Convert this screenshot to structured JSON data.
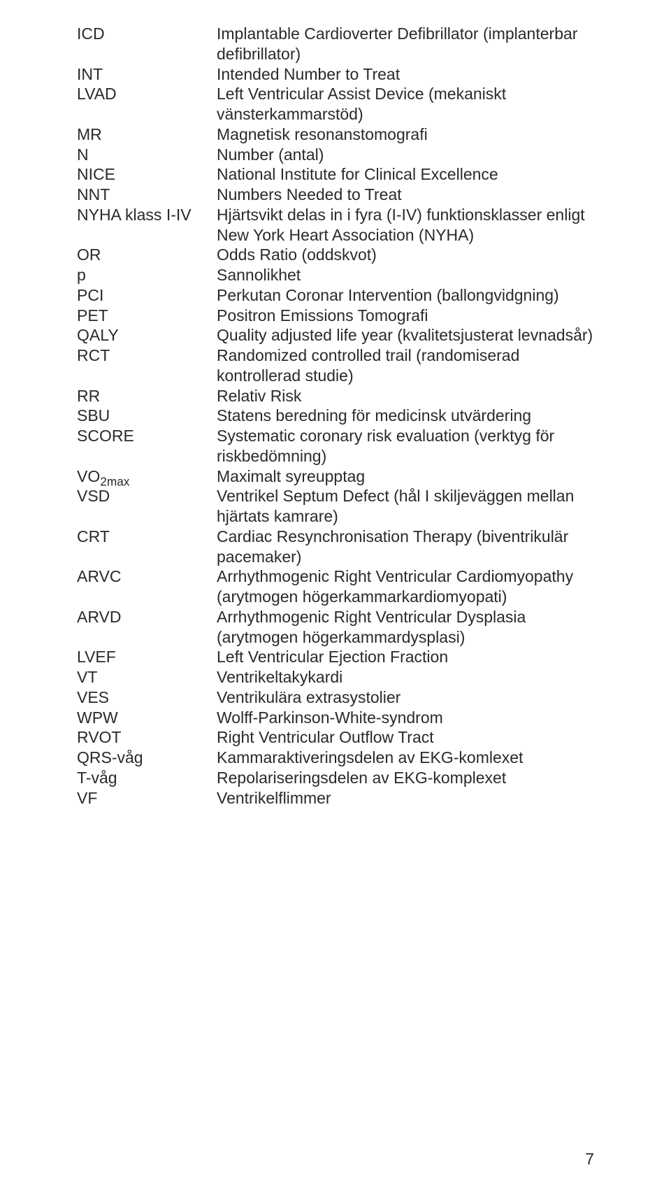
{
  "page_number": "7",
  "entries": [
    {
      "abbr": "ICD",
      "def": "Implantable Cardioverter Defibrillator (implanterbar defibrillator)"
    },
    {
      "abbr": "INT",
      "def": "Intended Number to Treat"
    },
    {
      "abbr": "LVAD",
      "def": "Left Ventricular Assist Device (mekaniskt vänsterkammarstöd)"
    },
    {
      "abbr": "MR",
      "def": "Magnetisk resonanstomografi"
    },
    {
      "abbr": "N",
      "def": "Number (antal)"
    },
    {
      "abbr": "NICE",
      "def": "National Institute for Clinical Excellence"
    },
    {
      "abbr": "NNT",
      "def": "Numbers Needed to Treat"
    },
    {
      "abbr": "NYHA klass I-IV",
      "def": "Hjärtsvikt delas in i fyra (I-IV) funktionsklasser enligt New York Heart Association (NYHA)"
    },
    {
      "abbr": "OR",
      "def": "Odds Ratio (oddskvot)"
    },
    {
      "abbr": "p",
      "def": "Sannolikhet"
    },
    {
      "abbr": "PCI",
      "def": "Perkutan Coronar Intervention (ballongvidgning)"
    },
    {
      "abbr": "PET",
      "def": "Positron Emissions Tomografi"
    },
    {
      "abbr": "QALY",
      "def": "Quality adjusted life year (kvalitetsjusterat levnadsår)"
    },
    {
      "abbr": "RCT",
      "def": "Randomized controlled trail (randomiserad kontrollerad studie)"
    },
    {
      "abbr": "RR",
      "def": "Relativ Risk"
    },
    {
      "abbr": "SBU",
      "def": "Statens beredning för medicinsk utvärdering"
    },
    {
      "abbr": "SCORE",
      "def": "Systematic coronary risk evaluation (verktyg för riskbedömning)"
    },
    {
      "abbr_html": "VO<span class=\"sub\">2max</span>",
      "abbr": "VO2max",
      "def": "Maximalt syreupptag"
    },
    {
      "abbr": "VSD",
      "def": "Ventrikel Septum Defect (hål I skiljeväggen mellan hjärtats kamrare)"
    },
    {
      "abbr": "CRT",
      "def": "Cardiac Resynchronisation Therapy (biventrikulär pacemaker)"
    },
    {
      "abbr": "ARVC",
      "def": "Arrhythmogenic Right Ventricular Cardiomyopathy (arytmogen högerkammarkardiomyopati)"
    },
    {
      "abbr": "ARVD",
      "def": "Arrhythmogenic Right Ventricular Dysplasia (arytmogen högerkammardysplasi)"
    },
    {
      "abbr": "LVEF",
      "def": "Left Ventricular Ejection Fraction"
    },
    {
      "abbr": "VT",
      "def": "Ventrikeltakykardi"
    },
    {
      "abbr": "VES",
      "def": "Ventrikulära extrasystolier"
    },
    {
      "abbr": "WPW",
      "def": "Wolff-Parkinson-White-syndrom"
    },
    {
      "abbr": "RVOT",
      "def": "Right Ventricular Outflow Tract"
    },
    {
      "abbr": "QRS-våg",
      "def": "Kammaraktiveringsdelen av EKG-komlexet"
    },
    {
      "abbr": "T-våg",
      "def": "Repolariseringsdelen av EKG-komplexet"
    },
    {
      "abbr": "VF",
      "def": "Ventrikelflimmer"
    }
  ]
}
